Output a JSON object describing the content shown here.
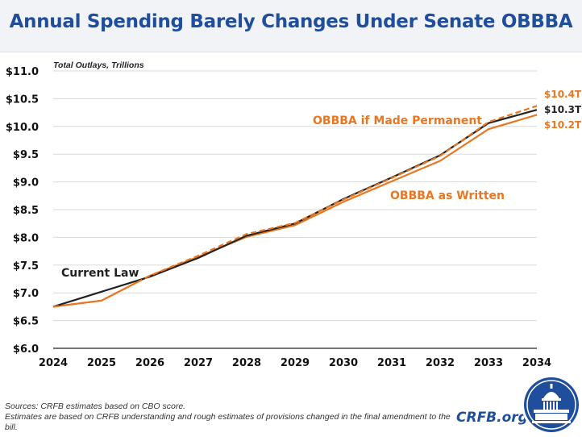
{
  "title": "Annual Spending Barely Changes Under Senate OBBBA",
  "site": "CRFB.org",
  "footer": {
    "sources": "Sources: CRFB estimates based on CBO score.",
    "note": "Estimates are based on CRFB understanding and rough estimates of provisions changed in the final amendment to the bill."
  },
  "colors": {
    "title": "#1f4e9c",
    "current_law": "#222222",
    "obbba": "#e87722",
    "grid": "#d9d9d9"
  },
  "icons": {
    "logo": "capitol-seal-icon"
  },
  "chart_data": {
    "type": "line",
    "subtitle": "Total Outlays, Trillions",
    "x": [
      "2024",
      "2025",
      "2026",
      "2027",
      "2028",
      "2029",
      "2030",
      "2031",
      "2032",
      "2033",
      "2034"
    ],
    "y_ticks": [
      "$11.0",
      "$10.5",
      "$10.0",
      "$9.5",
      "$9.0",
      "$8.5",
      "$8.0",
      "$7.5",
      "$7.0",
      "$6.5",
      "$6.0"
    ],
    "ylim": [
      6.0,
      11.0
    ],
    "grid": "horizontal",
    "series": [
      {
        "name": "Current Law",
        "style": "solid",
        "color": "#222222",
        "values": [
          6.75,
          7.02,
          7.29,
          7.63,
          8.03,
          8.25,
          8.69,
          9.08,
          9.48,
          10.06,
          10.3
        ]
      },
      {
        "name": "OBBBA as Written",
        "style": "solid",
        "color": "#e87722",
        "values": [
          6.75,
          6.86,
          7.31,
          7.65,
          8.01,
          8.22,
          8.64,
          9.01,
          9.38,
          9.95,
          10.21
        ]
      },
      {
        "name": "OBBBA if Made Permanent",
        "style": "dashed",
        "color": "#e87722",
        "values": [
          6.75,
          6.86,
          7.31,
          7.67,
          8.06,
          8.26,
          8.68,
          9.07,
          9.47,
          10.08,
          10.37
        ]
      }
    ],
    "end_labels": [
      {
        "series": "OBBBA if Made Permanent",
        "text": "$10.4T",
        "color": "#e87722"
      },
      {
        "series": "Current Law",
        "text": "$10.3T",
        "color": "#222222"
      },
      {
        "series": "OBBBA as Written",
        "text": "$10.2T",
        "color": "#e87722"
      }
    ]
  }
}
